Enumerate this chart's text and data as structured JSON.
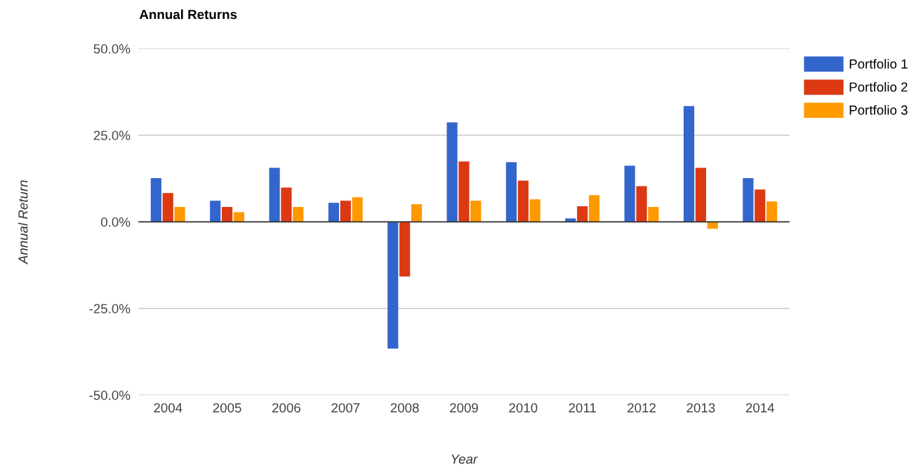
{
  "chart_data": {
    "type": "bar",
    "title": "Annual Returns",
    "xlabel": "Year",
    "ylabel": "Annual Return",
    "categories": [
      "2004",
      "2005",
      "2006",
      "2007",
      "2008",
      "2009",
      "2010",
      "2011",
      "2012",
      "2013",
      "2014"
    ],
    "series": [
      {
        "name": "Portfolio 1",
        "color": "#3366cc",
        "values": [
          12.6,
          6.1,
          15.6,
          5.5,
          -36.6,
          28.7,
          17.2,
          1.0,
          16.2,
          33.4,
          12.6
        ]
      },
      {
        "name": "Portfolio 2",
        "color": "#dc3912",
        "values": [
          8.3,
          4.3,
          9.9,
          6.1,
          -15.8,
          17.4,
          11.9,
          4.5,
          10.3,
          15.6,
          9.3
        ]
      },
      {
        "name": "Portfolio 3",
        "color": "#ff9900",
        "values": [
          4.3,
          2.8,
          4.3,
          7.1,
          5.1,
          6.1,
          6.5,
          7.7,
          4.3,
          -2.0,
          5.9
        ]
      }
    ],
    "ylim": [
      -50,
      50
    ],
    "yticks": [
      {
        "value": -50,
        "label": "-50.0%"
      },
      {
        "value": -25,
        "label": "-25.0%"
      },
      {
        "value": 0,
        "label": "0.0%"
      },
      {
        "value": 25,
        "label": "25.0%"
      },
      {
        "value": 50,
        "label": "50.0%"
      }
    ],
    "grid": "y",
    "legend": "right"
  }
}
